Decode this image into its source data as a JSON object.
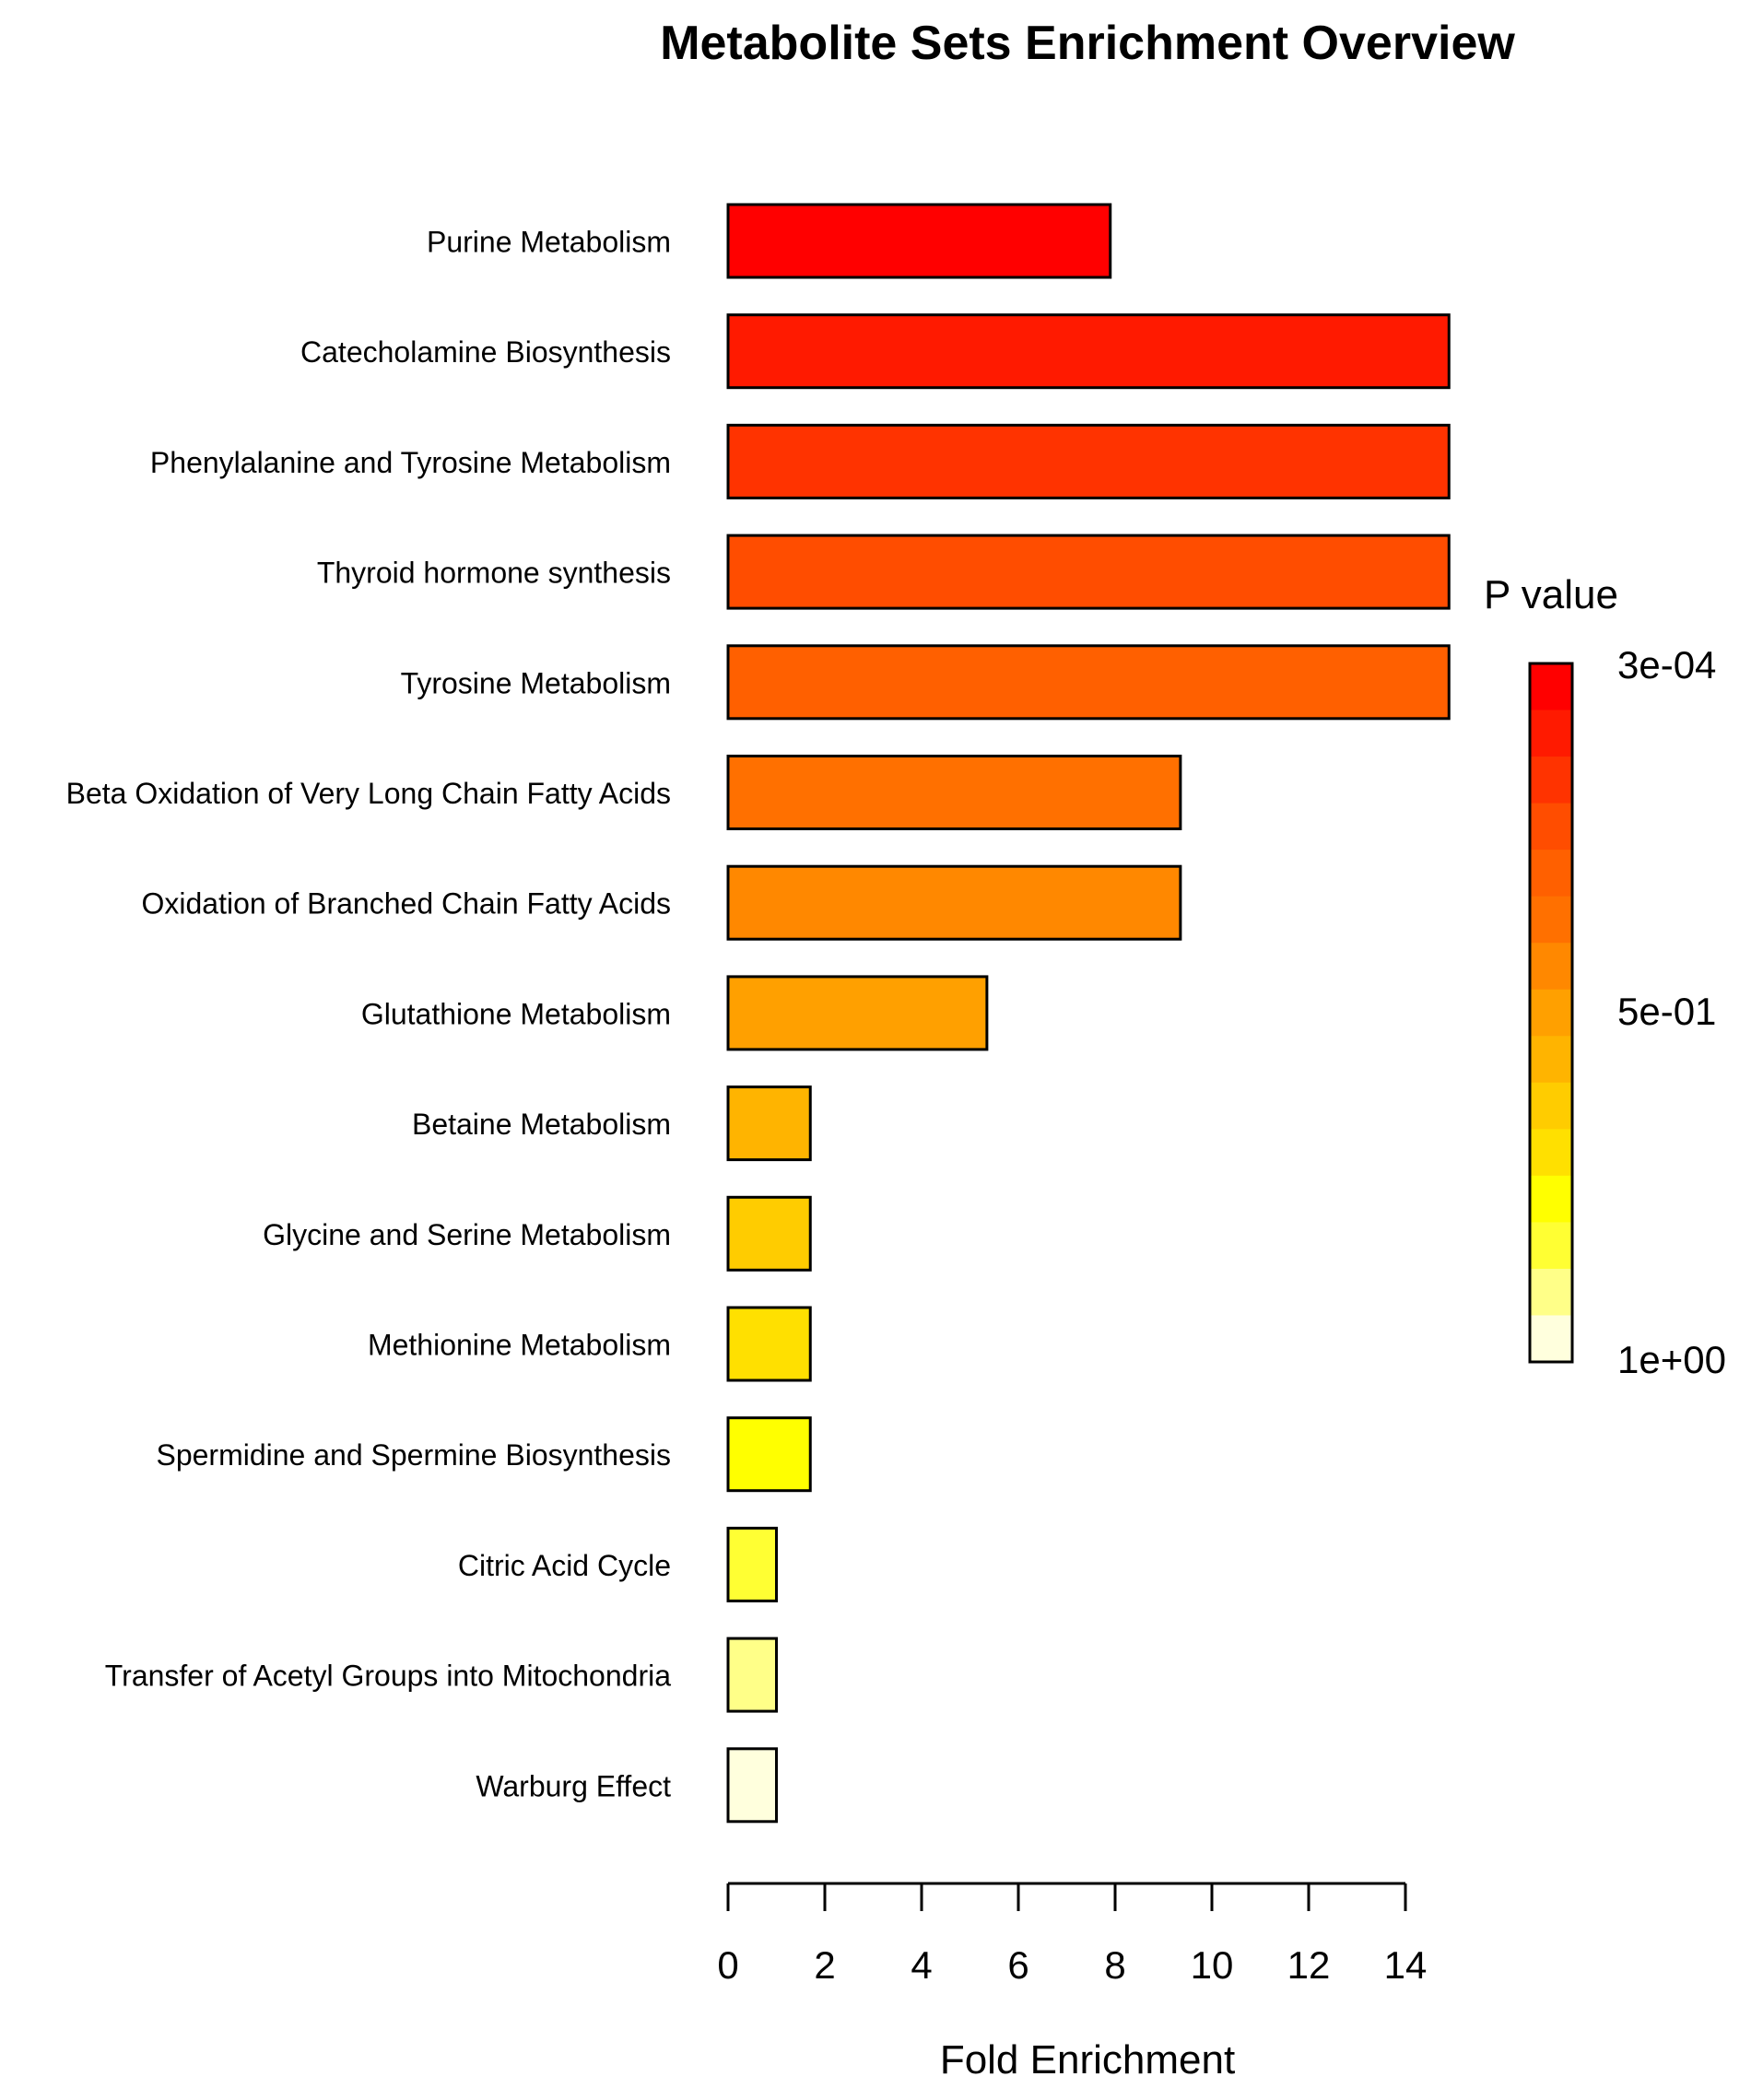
{
  "chart_data": {
    "type": "bar",
    "orientation": "horizontal",
    "title": "Metabolite Sets Enrichment Overview",
    "xlabel": "Fold Enrichment",
    "ylabel": "",
    "xlim": [
      0,
      14
    ],
    "x_ticks": [
      0,
      2,
      4,
      6,
      8,
      10,
      12,
      14
    ],
    "x_tick_labels": [
      "0",
      "2",
      "4",
      "6",
      "8",
      "10",
      "12",
      "14"
    ],
    "grid": false,
    "categories": [
      "Purine Metabolism",
      "Catecholamine Biosynthesis",
      "Phenylalanine and Tyrosine Metabolism",
      "Thyroid hormone synthesis",
      "Tyrosine Metabolism",
      "Beta Oxidation of Very Long Chain Fatty Acids",
      "Oxidation of Branched Chain Fatty Acids",
      "Glutathione Metabolism",
      "Betaine Metabolism",
      "Glycine and Serine Metabolism",
      "Methionine Metabolism",
      "Spermidine and Spermine Biosynthesis",
      "Citric Acid Cycle",
      "Transfer of Acetyl Groups into Mitochondria",
      "Warburg Effect"
    ],
    "values": [
      7.9,
      14.9,
      14.9,
      14.9,
      14.9,
      9.35,
      9.35,
      5.35,
      1.7,
      1.7,
      1.7,
      1.7,
      1.0,
      1.0,
      1.0
    ],
    "bar_colors": [
      "#FF0000",
      "#FF1A00",
      "#FF3300",
      "#FF4D00",
      "#FF6000",
      "#FF7000",
      "#FF8800",
      "#FFA000",
      "#FFB400",
      "#FFCC00",
      "#FFE000",
      "#FFFF00",
      "#FFFF33",
      "#FFFF88",
      "#FFFFDD"
    ],
    "legend": {
      "title": "P value",
      "position": "right",
      "labels": [
        "3e-04",
        "5e-01",
        "1e+00"
      ],
      "colors": [
        "#FF0000",
        "#FF1A00",
        "#FF3300",
        "#FF4D00",
        "#FF6000",
        "#FF7000",
        "#FF8800",
        "#FFA000",
        "#FFB400",
        "#FFCC00",
        "#FFE000",
        "#FFFF00",
        "#FFFF33",
        "#FFFF88",
        "#FFFFDD"
      ]
    }
  }
}
